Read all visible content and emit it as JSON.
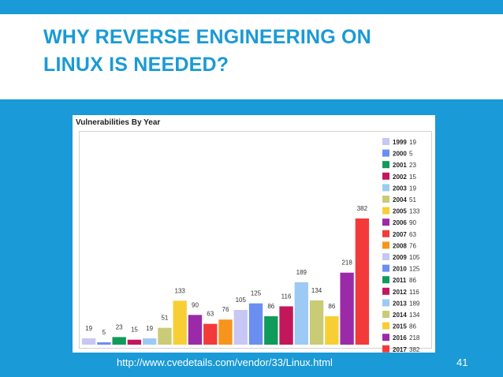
{
  "slide": {
    "title_line1": "WHY REVERSE ENGINEERING ON",
    "title_line2": "LINUX IS NEEDED?",
    "footer_url": "http://www.cvedetails.com/vendor/33/Linux.html",
    "page_number": "41"
  },
  "colors": {
    "background": "#1a9ad6",
    "title": "#1a9ad6"
  },
  "chart_data": {
    "type": "bar",
    "title": "Vulnerabilities By Year",
    "xlabel": "",
    "ylabel": "",
    "ylim": [
      0,
      400
    ],
    "grid": false,
    "legend_position": "right",
    "categories": [
      "1999",
      "2000",
      "2001",
      "2002",
      "2003",
      "2004",
      "2005",
      "2006",
      "2007",
      "2008",
      "2009",
      "2010",
      "2011",
      "2012",
      "2013",
      "2014",
      "2015",
      "2016",
      "2017"
    ],
    "values": [
      19,
      5,
      23,
      15,
      19,
      51,
      133,
      90,
      63,
      76,
      105,
      125,
      86,
      116,
      189,
      134,
      86,
      218,
      382
    ],
    "colors": [
      "#c7c7f5",
      "#6b8ff0",
      "#0f9b5a",
      "#c2185b",
      "#9ccaf5",
      "#c9cb76",
      "#f7cf35",
      "#9b2aa8",
      "#f33a3a",
      "#f7941d",
      "#c7c7f5",
      "#6b8ff0",
      "#0f9b5a",
      "#c2185b",
      "#9ccaf5",
      "#c9cb76",
      "#f7cf35",
      "#9b2aa8",
      "#f33a3a"
    ]
  }
}
